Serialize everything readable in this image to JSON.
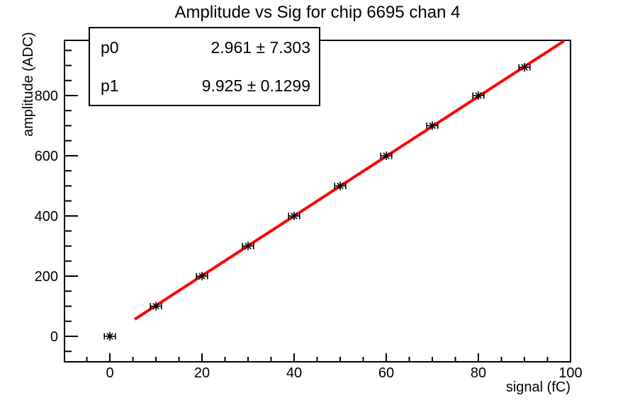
{
  "chart_data": {
    "type": "scatter",
    "title": "Amplitude vs Sig for chip 6695 chan 4",
    "xlabel": "signal (fC)",
    "ylabel": "amplitude (ADC)",
    "xlim": [
      -9.85,
      100
    ],
    "ylim": [
      -84.7,
      983.5
    ],
    "x_major_ticks": [
      0,
      20,
      40,
      60,
      80,
      100
    ],
    "x_minor_step": 5,
    "y_major_ticks": [
      0,
      200,
      400,
      600,
      800
    ],
    "y_minor_step": 50,
    "grid": false,
    "legend": "none",
    "points": {
      "x": [
        0,
        10,
        20,
        30,
        40,
        50,
        60,
        70,
        80,
        90
      ],
      "y": [
        0,
        100,
        200,
        300,
        400,
        500,
        600,
        700,
        800,
        894
      ],
      "x_err": 1.2
    },
    "fit": {
      "p0": 2.961,
      "p0_err": 7.303,
      "p1": 9.925,
      "p1_err": 0.1299,
      "x_start": 5.4,
      "x_end": 98.6,
      "color": "#ff0000"
    },
    "marker_color": "#000000",
    "axis_color": "#000000"
  },
  "stats_box": {
    "rows": [
      {
        "param": "p0",
        "value": "2.961 ± 7.303"
      },
      {
        "param": "p1",
        "value": "9.925 ± 0.1299"
      }
    ]
  }
}
